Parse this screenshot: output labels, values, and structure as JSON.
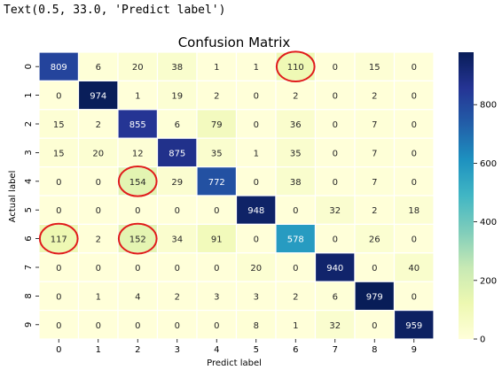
{
  "output_text": "Text(0.5, 33.0, 'Predict label')",
  "chart_data": {
    "type": "heatmap",
    "title": "Confusion Matrix",
    "xlabel": "Predict label",
    "ylabel": "Actual label",
    "x_tick_labels": [
      "0",
      "1",
      "2",
      "3",
      "4",
      "5",
      "6",
      "7",
      "8",
      "9"
    ],
    "y_tick_labels": [
      "0",
      "1",
      "2",
      "3",
      "4",
      "5",
      "6",
      "7",
      "8",
      "9"
    ],
    "values": [
      [
        809,
        6,
        20,
        38,
        1,
        1,
        110,
        0,
        15,
        0
      ],
      [
        0,
        974,
        1,
        19,
        2,
        0,
        2,
        0,
        2,
        0
      ],
      [
        15,
        2,
        855,
        6,
        79,
        0,
        36,
        0,
        7,
        0
      ],
      [
        15,
        20,
        12,
        875,
        35,
        1,
        35,
        0,
        7,
        0
      ],
      [
        0,
        0,
        154,
        29,
        772,
        0,
        38,
        0,
        7,
        0
      ],
      [
        0,
        0,
        0,
        0,
        0,
        948,
        0,
        32,
        2,
        18
      ],
      [
        117,
        2,
        152,
        34,
        91,
        0,
        578,
        0,
        26,
        0
      ],
      [
        0,
        0,
        0,
        0,
        0,
        20,
        0,
        940,
        0,
        40
      ],
      [
        0,
        1,
        4,
        2,
        3,
        3,
        2,
        6,
        979,
        0
      ],
      [
        0,
        0,
        0,
        0,
        0,
        8,
        1,
        32,
        0,
        959
      ]
    ],
    "colormap": "YlGnBu",
    "vmin": 0,
    "vmax": 979,
    "colorbar_ticks": [
      0,
      200,
      400,
      600,
      800
    ],
    "highlighted_cells": [
      [
        0,
        6
      ],
      [
        4,
        2
      ],
      [
        6,
        0
      ],
      [
        6,
        2
      ]
    ],
    "highlight_color": "#e01b1b",
    "grid_line_color": "#ffffff"
  }
}
